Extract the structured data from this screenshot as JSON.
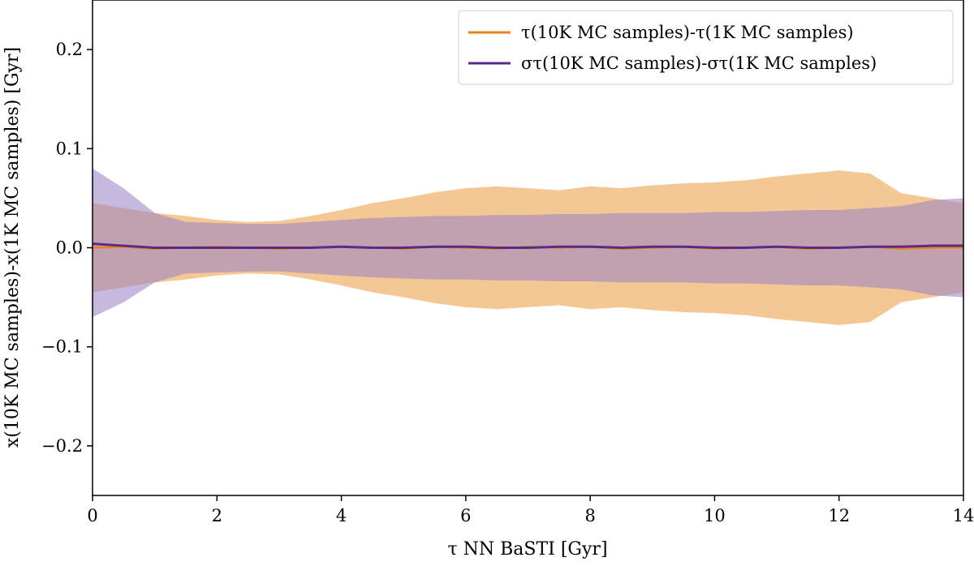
{
  "chart_data": {
    "type": "line",
    "title": "",
    "xlabel": "τ NN BaSTI [Gyr]",
    "ylabel": "x(10K MC samples)-x(1K MC samples) [Gyr]",
    "xlim": [
      0,
      14
    ],
    "ylim": [
      -0.25,
      0.25
    ],
    "xticks": [
      0,
      2,
      4,
      6,
      8,
      10,
      12,
      14
    ],
    "xtick_labels": [
      "0",
      "2",
      "4",
      "6",
      "8",
      "10",
      "12",
      "14"
    ],
    "yticks": [
      -0.2,
      -0.1,
      0.0,
      0.1,
      0.2
    ],
    "ytick_labels": [
      "−0.2",
      "−0.1",
      "0.0",
      "0.1",
      "0.2"
    ],
    "grid": false,
    "legend_position": "top-right",
    "series": [
      {
        "name": "τ(10K MC samples)-τ(1K MC samples)",
        "color": "#e8821e",
        "band_color": "#f0b571",
        "x": [
          0,
          0.5,
          1,
          1.5,
          2,
          2.5,
          3,
          3.5,
          4,
          4.5,
          5,
          5.5,
          6,
          6.5,
          7,
          7.5,
          8,
          8.5,
          9,
          9.5,
          10,
          10.5,
          11,
          11.5,
          12,
          12.5,
          13,
          13.5,
          14
        ],
        "values": [
          0.0,
          0.001,
          -0.001,
          0.0,
          0.001,
          0.0,
          -0.001,
          0.0,
          0.001,
          0.0,
          -0.001,
          0.001,
          0.0,
          -0.001,
          0.001,
          0.0,
          0.001,
          -0.001,
          0.0,
          0.001,
          -0.001,
          0.0,
          0.001,
          -0.001,
          0.0,
          0.001,
          -0.001,
          0.0,
          0.0
        ],
        "band_upper": [
          0.045,
          0.04,
          0.035,
          0.032,
          0.028,
          0.026,
          0.027,
          0.032,
          0.038,
          0.045,
          0.05,
          0.056,
          0.06,
          0.062,
          0.06,
          0.058,
          0.062,
          0.06,
          0.063,
          0.065,
          0.066,
          0.068,
          0.072,
          0.075,
          0.078,
          0.075,
          0.055,
          0.05,
          0.045
        ],
        "band_lower": [
          -0.045,
          -0.04,
          -0.035,
          -0.032,
          -0.028,
          -0.026,
          -0.027,
          -0.032,
          -0.038,
          -0.045,
          -0.05,
          -0.056,
          -0.06,
          -0.062,
          -0.06,
          -0.058,
          -0.062,
          -0.06,
          -0.063,
          -0.065,
          -0.066,
          -0.068,
          -0.072,
          -0.075,
          -0.078,
          -0.075,
          -0.055,
          -0.05,
          -0.045
        ]
      },
      {
        "name": "στ(10K MC samples)-στ(1K MC samples)",
        "color": "#5b2a86",
        "band_color": "#9880c4",
        "x": [
          0,
          0.5,
          1,
          1.5,
          2,
          2.5,
          3,
          3.5,
          4,
          4.5,
          5,
          5.5,
          6,
          6.5,
          7,
          7.5,
          8,
          8.5,
          9,
          9.5,
          10,
          10.5,
          11,
          11.5,
          12,
          12.5,
          13,
          13.5,
          14
        ],
        "values": [
          0.004,
          0.002,
          0.0,
          0.0,
          0.0,
          0.0,
          0.0,
          0.0,
          0.001,
          0.0,
          0.0,
          0.001,
          0.001,
          0.0,
          0.0,
          0.001,
          0.001,
          0.0,
          0.001,
          0.001,
          0.0,
          0.0,
          0.001,
          0.0,
          0.0,
          0.001,
          0.001,
          0.002,
          0.002
        ],
        "band_upper": [
          0.08,
          0.06,
          0.035,
          0.026,
          0.025,
          0.024,
          0.024,
          0.026,
          0.028,
          0.03,
          0.031,
          0.032,
          0.032,
          0.033,
          0.033,
          0.034,
          0.034,
          0.035,
          0.035,
          0.035,
          0.036,
          0.036,
          0.037,
          0.038,
          0.038,
          0.04,
          0.042,
          0.048,
          0.05
        ],
        "band_lower": [
          -0.07,
          -0.055,
          -0.035,
          -0.026,
          -0.025,
          -0.024,
          -0.024,
          -0.026,
          -0.028,
          -0.03,
          -0.031,
          -0.032,
          -0.032,
          -0.033,
          -0.033,
          -0.034,
          -0.034,
          -0.035,
          -0.035,
          -0.035,
          -0.036,
          -0.036,
          -0.037,
          -0.038,
          -0.038,
          -0.04,
          -0.042,
          -0.048,
          -0.05
        ]
      }
    ]
  },
  "legend": {
    "entries": [
      {
        "name": "τ(10K MC samples)-τ(1K MC samples)",
        "color": "#e8821e"
      },
      {
        "name": "στ(10K MC samples)-στ(1K MC samples)",
        "color": "#5b2a86"
      }
    ]
  }
}
